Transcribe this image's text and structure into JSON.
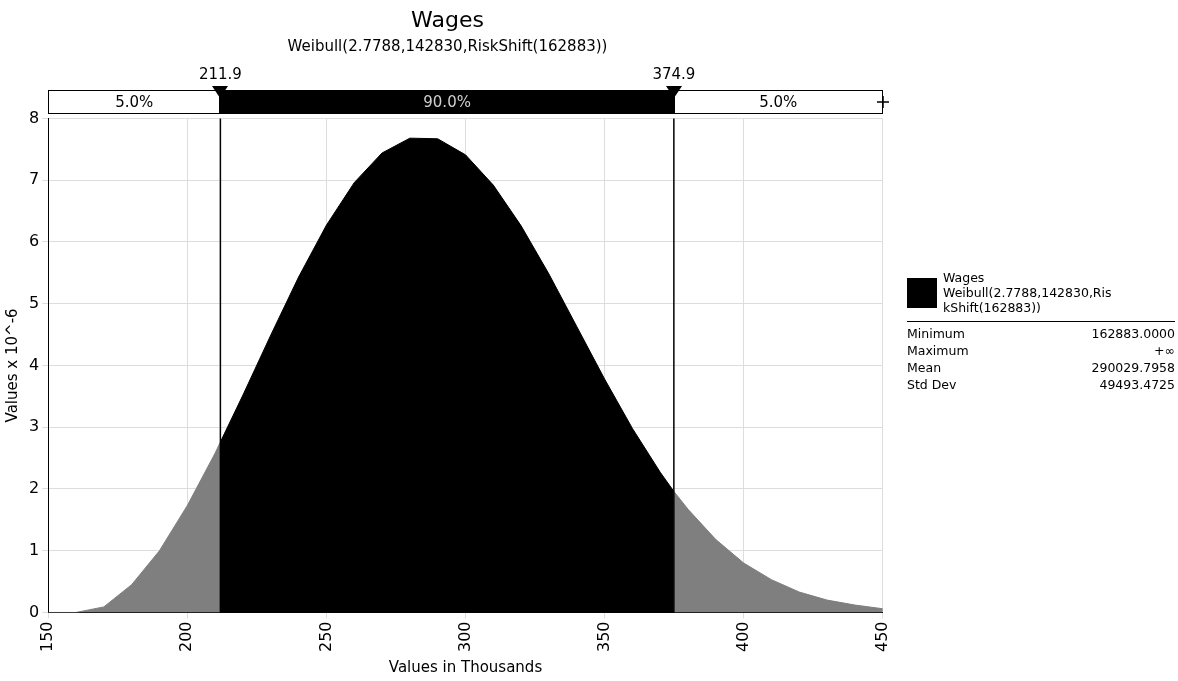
{
  "chart_data": {
    "type": "area",
    "title": "Wages",
    "subtitle": "Weibull(2.7788,142830,RiskShift(162883))",
    "xlabel": "Values in Thousands",
    "ylabel": "Values x 10^-6",
    "series": [
      {
        "color": "#7f7f7f",
        "x": [
          150,
          160,
          170,
          180,
          190,
          200,
          210,
          211.9
        ],
        "values": [
          0,
          0,
          0.09,
          0.45,
          1.0,
          1.73,
          2.58,
          2.76
        ]
      },
      {
        "name": "Wages Weibull(2.7788,142830,RiskShift(162883))",
        "color": "#000000",
        "x": [
          211.9,
          220,
          230,
          240,
          250,
          260,
          270,
          280,
          290,
          300,
          310,
          320,
          330,
          340,
          350,
          360,
          370,
          374.9
        ],
        "values": [
          2.76,
          3.52,
          4.49,
          5.43,
          6.27,
          6.96,
          7.44,
          7.68,
          7.67,
          7.41,
          6.92,
          6.26,
          5.48,
          4.63,
          3.78,
          2.98,
          2.27,
          1.96
        ]
      },
      {
        "color": "#7f7f7f",
        "x": [
          374.9,
          380,
          390,
          400,
          410,
          420,
          430,
          440,
          450
        ],
        "values": [
          1.96,
          1.67,
          1.18,
          0.8,
          0.53,
          0.33,
          0.2,
          0.12,
          0.06
        ]
      }
    ],
    "xlim": [
      150,
      450
    ],
    "xticks": [
      150,
      200,
      250,
      300,
      350,
      400,
      450
    ],
    "ylim": [
      0,
      8
    ],
    "yticks": [
      0,
      1,
      2,
      3,
      4,
      5,
      6,
      7,
      8
    ],
    "grid": true,
    "legend": "right",
    "ref_lines": [
      {
        "axis": "x",
        "value": 211.9,
        "label": "211.9"
      },
      {
        "axis": "x",
        "value": 374.9,
        "label": "374.9"
      }
    ],
    "annotations": [
      "5.0%",
      "90.0%",
      "5.0%",
      "Minimum 162883.0000",
      "Maximum +∞",
      "Mean 290029.7958",
      "Std Dev 49493.4725"
    ]
  }
}
